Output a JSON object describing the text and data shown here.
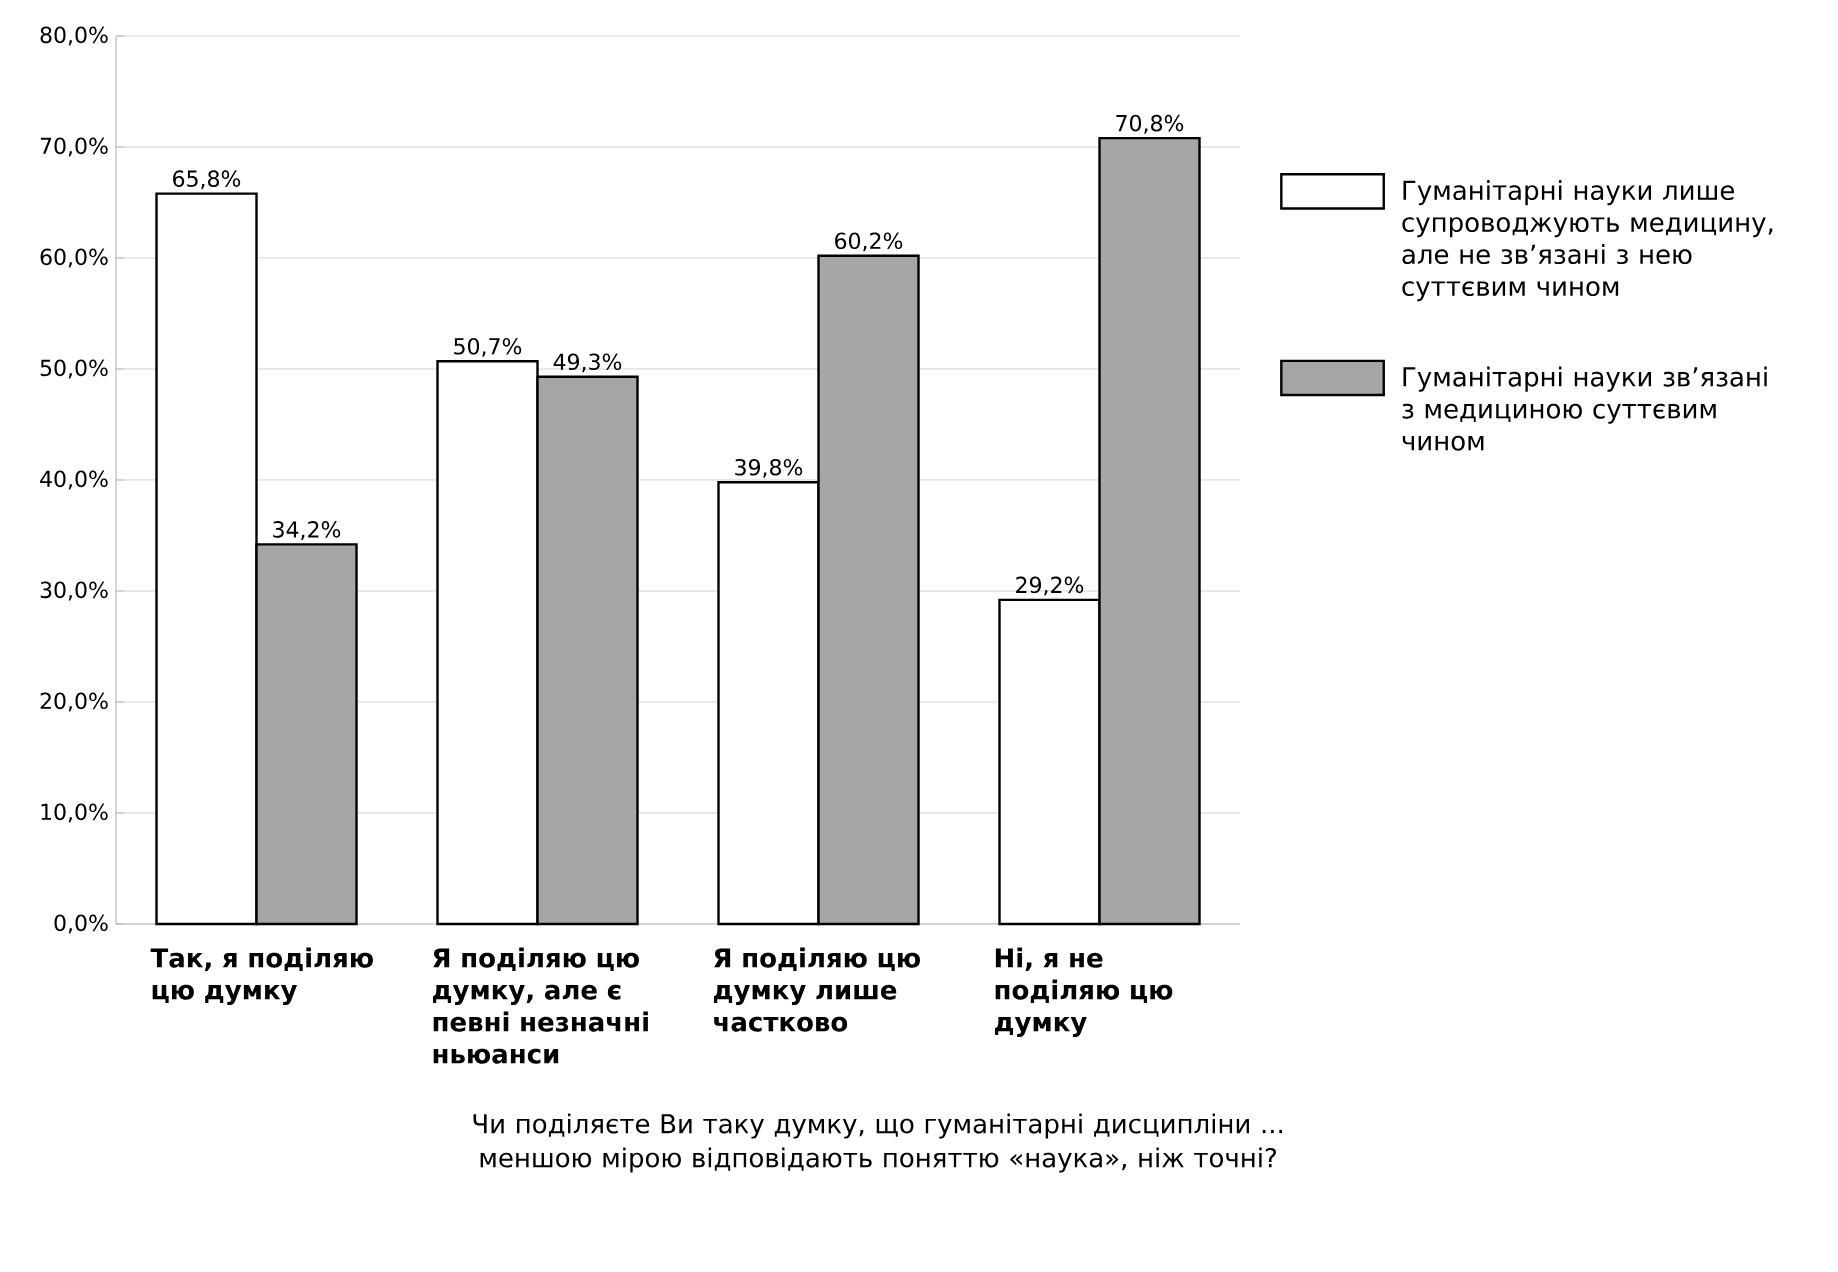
{
  "chart_data": {
    "type": "bar",
    "xlabel": "Чи поділяєте Ви таку думку, що гуманітарні дисципліни ... меншою мірою відповідають поняттю «наука», ніж точні?",
    "categories": [
      "Так, я поділяю цю думку",
      "Я поділяю цю думку, але є певні незначні ньюанси",
      "Я поділяю цю думку лише частково",
      "Ні, я не поділяю цю думку"
    ],
    "series": [
      {
        "name": "Гуманітарні науки лише супроводжують медицину, але не зв’язані з нею суттєвим чином",
        "color": "#ffffff",
        "values": [
          65.8,
          50.7,
          39.8,
          29.2
        ],
        "value_labels": [
          "65,8%",
          "50,7%",
          "39,8%",
          "29,2%"
        ]
      },
      {
        "name": "Гуманітарні науки зв’язані з медициною суттєвим чином",
        "color": "#a6a6a6",
        "values": [
          34.2,
          49.3,
          60.2,
          70.8
        ],
        "value_labels": [
          "34,2%",
          "49,3%",
          "60,2%",
          "70,8%"
        ]
      }
    ],
    "ylim": [
      0,
      80
    ],
    "yticks": [
      {
        "value": 0,
        "label": "0,0%"
      },
      {
        "value": 10,
        "label": "10,0%"
      },
      {
        "value": 20,
        "label": "20,0%"
      },
      {
        "value": 30,
        "label": "30,0%"
      },
      {
        "value": 40,
        "label": "40,0%"
      },
      {
        "value": 50,
        "label": "50,0%"
      },
      {
        "value": 60,
        "label": "60,0%"
      },
      {
        "value": 70,
        "label": "70,0%"
      },
      {
        "value": 80,
        "label": "80,0%"
      }
    ],
    "grid": "y",
    "legend": "right"
  }
}
